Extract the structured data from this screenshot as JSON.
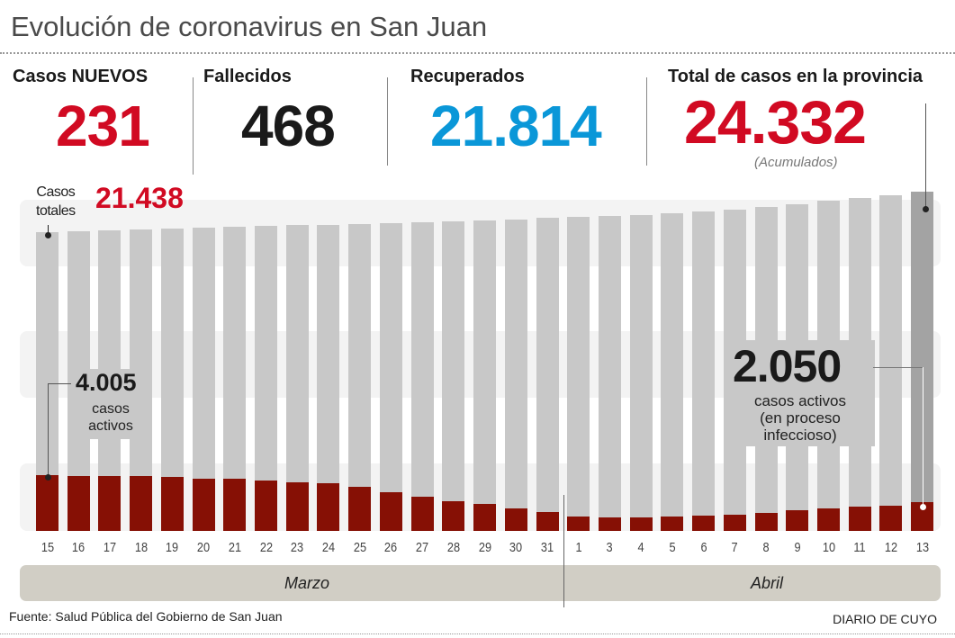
{
  "title": "Evolución de coronavirus en San Juan",
  "stats": [
    {
      "label": "Casos NUEVOS",
      "value": "231",
      "color": "#d10a22"
    },
    {
      "label": "Fallecidos",
      "value": "468",
      "color": "#1a1a1a"
    },
    {
      "label": "Recuperados",
      "value": "21.814",
      "color": "#0a97d8"
    },
    {
      "label": "Total de casos en la provincia",
      "value": "24.332",
      "color": "#d10a22",
      "note": "(Acumulados)"
    }
  ],
  "annotations": {
    "start_total_label_1": "Casos",
    "start_total_label_2": "totales",
    "start_total_value": "21.438",
    "start_active_value": "4.005",
    "start_active_label_1": "casos",
    "start_active_label_2": "activos",
    "end_active_value": "2.050",
    "end_active_label_1": "casos activos",
    "end_active_label_2": "(en proceso",
    "end_active_label_3": "infeccioso)"
  },
  "footer": {
    "source": "Fuente: Salud Pública del Gobierno de San Juan",
    "brand": "DIARIO DE CUYO"
  },
  "chart_data": {
    "type": "bar",
    "stacked_overlay": true,
    "categories": [
      "15",
      "16",
      "17",
      "18",
      "19",
      "20",
      "21",
      "22",
      "23",
      "24",
      "25",
      "26",
      "27",
      "28",
      "29",
      "30",
      "31",
      "1",
      "3",
      "4",
      "5",
      "6",
      "7",
      "8",
      "9",
      "10",
      "11",
      "12",
      "13"
    ],
    "months": [
      {
        "name": "Marzo",
        "from": "15",
        "to": "31"
      },
      {
        "name": "Abril",
        "from": "1",
        "to": "13"
      }
    ],
    "series": [
      {
        "name": "Casos totales",
        "color": "#c8c8c8",
        "highlight_color": "#a3a3a3",
        "values": [
          21438,
          21500,
          21570,
          21640,
          21700,
          21770,
          21830,
          21900,
          21960,
          21960,
          22030,
          22090,
          22160,
          22220,
          22290,
          22350,
          22480,
          22540,
          22610,
          22670,
          22800,
          22930,
          23060,
          23250,
          23450,
          23700,
          23900,
          24090,
          24332
        ]
      },
      {
        "name": "casos activos",
        "color": "#861005",
        "values": [
          4005,
          3940,
          3940,
          3940,
          3880,
          3750,
          3750,
          3620,
          3490,
          3420,
          3170,
          2780,
          2450,
          2130,
          1940,
          1620,
          1360,
          1030,
          970,
          970,
          1030,
          1100,
          1160,
          1290,
          1490,
          1620,
          1740,
          1810,
          2050
        ]
      }
    ],
    "ylim": [
      0,
      24332
    ],
    "grid": false,
    "axis_visible": false
  }
}
